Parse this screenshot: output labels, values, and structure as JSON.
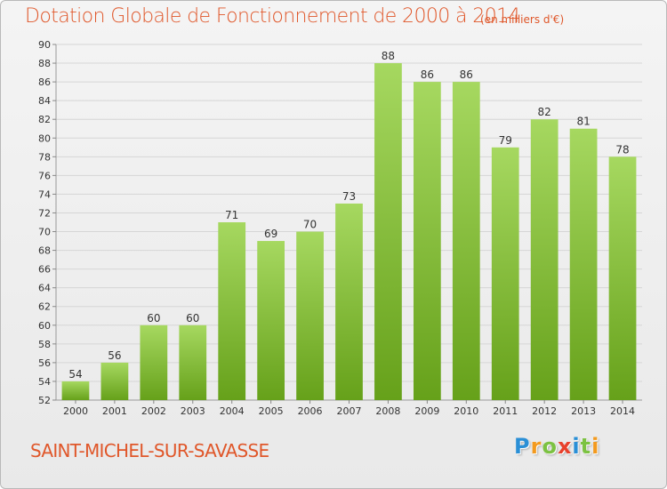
{
  "title": "Dotation Globale de Fonctionnement de 2000 à 2014",
  "subtitle": "(en milliers d'€)",
  "commune": "SAINT-MICHEL-SUR-SAVASSE",
  "logo": {
    "letters": [
      "P",
      "r",
      "o",
      "x",
      "i",
      "t",
      "i"
    ],
    "colors": [
      "#2a8fd6",
      "#f39a1e",
      "#7cc242",
      "#e8412c",
      "#2a8fd6",
      "#7cc242",
      "#f39a1e"
    ]
  },
  "colors": {
    "bar_light": "#a6d860",
    "bar_dark": "#66a11a",
    "title": "#e0572a",
    "grid": "#d6d6d6"
  },
  "chart_data": {
    "type": "bar",
    "categories": [
      "2000",
      "2001",
      "2002",
      "2003",
      "2004",
      "2005",
      "2006",
      "2007",
      "2008",
      "2009",
      "2010",
      "2011",
      "2012",
      "2013",
      "2014"
    ],
    "values": [
      54,
      56,
      60,
      60,
      71,
      69,
      70,
      73,
      88,
      86,
      86,
      79,
      82,
      81,
      78
    ],
    "ylim": [
      52,
      90
    ],
    "yticks": [
      52,
      54,
      56,
      58,
      60,
      62,
      64,
      66,
      68,
      70,
      72,
      74,
      76,
      78,
      80,
      82,
      84,
      86,
      88,
      90
    ],
    "grid": true,
    "title": "Dotation Globale de Fonctionnement de 2000 à 2014",
    "xlabel": "",
    "ylabel": ""
  }
}
